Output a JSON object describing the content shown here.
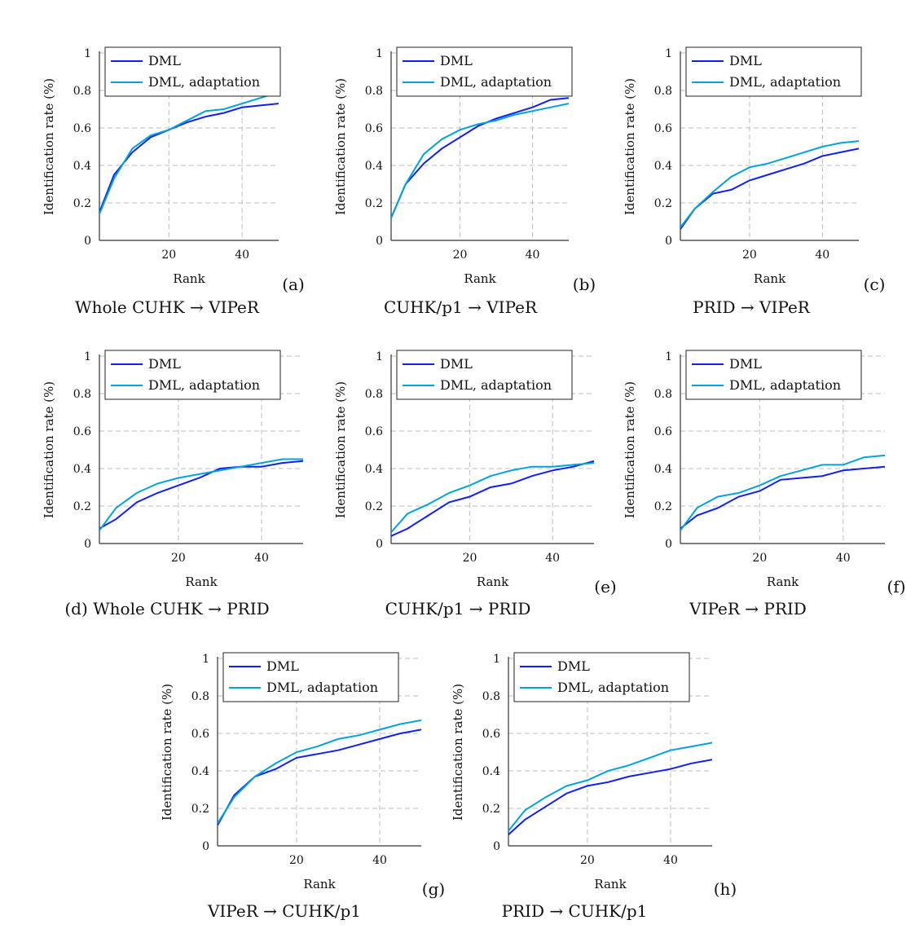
{
  "colors": {
    "DML": "#1020f0",
    "DML, adaptation": "#00a3dc",
    "grid": "#bdbdbd",
    "axis": "#333333"
  },
  "chart_data": [
    {
      "type": "line",
      "tag": "(a)",
      "caption": "Whole CUHK → VIPeR",
      "xlabel": "Rank",
      "ylabel": "Identification rate (%)",
      "xlim": [
        1,
        50
      ],
      "ylim": [
        0,
        1
      ],
      "xticks": [
        20,
        40
      ],
      "yticks": [
        0,
        0.2,
        0.4,
        0.6,
        0.8,
        1
      ],
      "grid": true,
      "legend": "top-left",
      "x": [
        1,
        5,
        10,
        15,
        20,
        25,
        30,
        35,
        40,
        45,
        50
      ],
      "series": [
        {
          "name": "DML",
          "values": [
            0.15,
            0.35,
            0.47,
            0.55,
            0.59,
            0.63,
            0.66,
            0.68,
            0.71,
            0.72,
            0.73
          ]
        },
        {
          "name": "DML, adaptation",
          "values": [
            0.14,
            0.33,
            0.49,
            0.56,
            0.59,
            0.64,
            0.69,
            0.7,
            0.73,
            0.76,
            0.79
          ]
        }
      ]
    },
    {
      "type": "line",
      "tag": "(b)",
      "caption": "CUHK/p1 → VIPeR",
      "xlabel": "Rank",
      "ylabel": "Identification rate (%)",
      "xlim": [
        1,
        50
      ],
      "ylim": [
        0,
        1
      ],
      "xticks": [
        20,
        40
      ],
      "yticks": [
        0,
        0.2,
        0.4,
        0.6,
        0.8,
        1
      ],
      "grid": true,
      "legend": "top-left",
      "x": [
        1,
        5,
        10,
        15,
        20,
        25,
        30,
        35,
        40,
        45,
        50
      ],
      "series": [
        {
          "name": "DML",
          "values": [
            0.12,
            0.3,
            0.41,
            0.49,
            0.55,
            0.61,
            0.65,
            0.68,
            0.71,
            0.75,
            0.76
          ]
        },
        {
          "name": "DML, adaptation",
          "values": [
            0.12,
            0.3,
            0.46,
            0.54,
            0.59,
            0.62,
            0.64,
            0.67,
            0.69,
            0.71,
            0.73
          ]
        }
      ]
    },
    {
      "type": "line",
      "tag": "(c)",
      "caption": "PRID → VIPeR",
      "xlabel": "Rank",
      "ylabel": "Identification rate (%)",
      "xlim": [
        1,
        50
      ],
      "ylim": [
        0,
        1
      ],
      "xticks": [
        20,
        40
      ],
      "yticks": [
        0,
        0.2,
        0.4,
        0.6,
        0.8,
        1
      ],
      "grid": true,
      "legend": "top-left",
      "x": [
        1,
        5,
        10,
        15,
        20,
        25,
        30,
        35,
        40,
        45,
        50
      ],
      "series": [
        {
          "name": "DML",
          "values": [
            0.06,
            0.17,
            0.25,
            0.27,
            0.32,
            0.35,
            0.38,
            0.41,
            0.45,
            0.47,
            0.49
          ]
        },
        {
          "name": "DML, adaptation",
          "values": [
            0.07,
            0.17,
            0.26,
            0.34,
            0.39,
            0.41,
            0.44,
            0.47,
            0.5,
            0.52,
            0.53
          ]
        }
      ]
    },
    {
      "type": "line",
      "tag": "",
      "caption": "(d) Whole CUHK → PRID",
      "xlabel": "Rank",
      "ylabel": "Identification rate (%)",
      "xlim": [
        1,
        50
      ],
      "ylim": [
        0,
        1
      ],
      "xticks": [
        20,
        40
      ],
      "yticks": [
        0,
        0.2,
        0.4,
        0.6,
        0.8,
        1
      ],
      "grid": true,
      "legend": "top-left",
      "x": [
        1,
        5,
        10,
        15,
        20,
        25,
        30,
        35,
        40,
        45,
        50
      ],
      "series": [
        {
          "name": "DML",
          "values": [
            0.08,
            0.13,
            0.22,
            0.27,
            0.31,
            0.35,
            0.4,
            0.41,
            0.41,
            0.43,
            0.44
          ]
        },
        {
          "name": "DML, adaptation",
          "values": [
            0.07,
            0.19,
            0.27,
            0.32,
            0.35,
            0.37,
            0.39,
            0.41,
            0.43,
            0.45,
            0.45
          ]
        }
      ]
    },
    {
      "type": "line",
      "tag": "(e)",
      "caption": "CUHK/p1 → PRID",
      "xlabel": "Rank",
      "ylabel": "Identification rate (%)",
      "xlim": [
        1,
        50
      ],
      "ylim": [
        0,
        1
      ],
      "xticks": [
        20,
        40
      ],
      "yticks": [
        0,
        0.2,
        0.4,
        0.6,
        0.8,
        1
      ],
      "grid": true,
      "legend": "top-left",
      "x": [
        1,
        5,
        10,
        15,
        20,
        25,
        30,
        35,
        40,
        45,
        50
      ],
      "series": [
        {
          "name": "DML",
          "values": [
            0.04,
            0.08,
            0.15,
            0.22,
            0.25,
            0.3,
            0.32,
            0.36,
            0.39,
            0.41,
            0.44
          ]
        },
        {
          "name": "DML, adaptation",
          "values": [
            0.06,
            0.16,
            0.21,
            0.27,
            0.31,
            0.36,
            0.39,
            0.41,
            0.41,
            0.42,
            0.43
          ]
        }
      ]
    },
    {
      "type": "line",
      "tag": "(f)",
      "caption": "VIPeR → PRID",
      "xlabel": "Rank",
      "ylabel": "Identification rate (%)",
      "xlim": [
        1,
        50
      ],
      "ylim": [
        0,
        1
      ],
      "xticks": [
        20,
        40
      ],
      "yticks": [
        0,
        0.2,
        0.4,
        0.6,
        0.8,
        1
      ],
      "grid": true,
      "legend": "top-left",
      "x": [
        1,
        5,
        10,
        15,
        20,
        25,
        30,
        35,
        40,
        45,
        50
      ],
      "series": [
        {
          "name": "DML",
          "values": [
            0.08,
            0.15,
            0.19,
            0.25,
            0.28,
            0.34,
            0.35,
            0.36,
            0.39,
            0.4,
            0.41
          ]
        },
        {
          "name": "DML, adaptation",
          "values": [
            0.07,
            0.19,
            0.25,
            0.27,
            0.31,
            0.36,
            0.39,
            0.42,
            0.42,
            0.46,
            0.47
          ]
        }
      ]
    },
    {
      "type": "line",
      "tag": "(g)",
      "caption": "VIPeR → CUHK/p1",
      "xlabel": "Rank",
      "ylabel": "Identification rate (%)",
      "xlim": [
        1,
        50
      ],
      "ylim": [
        0,
        1
      ],
      "xticks": [
        20,
        40
      ],
      "yticks": [
        0,
        0.2,
        0.4,
        0.6,
        0.8,
        1
      ],
      "grid": true,
      "legend": "top-left",
      "x": [
        1,
        5,
        10,
        15,
        20,
        25,
        30,
        35,
        40,
        45,
        50
      ],
      "series": [
        {
          "name": "DML",
          "values": [
            0.11,
            0.27,
            0.37,
            0.41,
            0.47,
            0.49,
            0.51,
            0.54,
            0.57,
            0.6,
            0.62
          ]
        },
        {
          "name": "DML, adaptation",
          "values": [
            0.12,
            0.26,
            0.37,
            0.44,
            0.5,
            0.53,
            0.57,
            0.59,
            0.62,
            0.65,
            0.67
          ]
        }
      ]
    },
    {
      "type": "line",
      "tag": "(h)",
      "caption": "PRID → CUHK/p1",
      "xlabel": "Rank",
      "ylabel": "Identification rate (%)",
      "xlim": [
        1,
        50
      ],
      "ylim": [
        0,
        1
      ],
      "xticks": [
        20,
        40
      ],
      "yticks": [
        0,
        0.2,
        0.4,
        0.6,
        0.8,
        1
      ],
      "grid": true,
      "legend": "top-left",
      "x": [
        1,
        5,
        10,
        15,
        20,
        25,
        30,
        35,
        40,
        45,
        50
      ],
      "series": [
        {
          "name": "DML",
          "values": [
            0.06,
            0.14,
            0.21,
            0.28,
            0.32,
            0.34,
            0.37,
            0.39,
            0.41,
            0.44,
            0.46
          ]
        },
        {
          "name": "DML, adaptation",
          "values": [
            0.08,
            0.19,
            0.26,
            0.32,
            0.35,
            0.4,
            0.43,
            0.47,
            0.51,
            0.53,
            0.55
          ]
        }
      ]
    }
  ]
}
